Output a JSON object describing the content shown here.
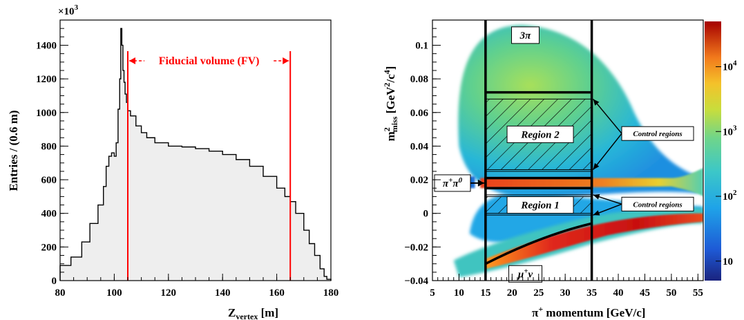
{
  "chart_data": [
    {
      "type": "histogram",
      "title": "",
      "xlabel_main": "Z",
      "xlabel_sub": "vertex",
      "xlabel_unit": " [m]",
      "ylabel": "Entries / (0.6 m)",
      "y_multiplier": "×10",
      "y_multiplier_exp": "3",
      "xlim": [
        80,
        180
      ],
      "ylim": [
        0,
        1550
      ],
      "x_ticks": [
        80,
        100,
        120,
        140,
        160,
        180
      ],
      "y_ticks": [
        0,
        200,
        400,
        600,
        800,
        1000,
        1200,
        1400
      ],
      "x": [
        80,
        84,
        88,
        91,
        94,
        96,
        97,
        98,
        99,
        100,
        100.7,
        101.4,
        102,
        102.4,
        102.8,
        103.2,
        103.6,
        104,
        104.5,
        105,
        106,
        108,
        110,
        112,
        115,
        120,
        125,
        130,
        135,
        140,
        145,
        150,
        155,
        160,
        163,
        165,
        167,
        170,
        172,
        174,
        176,
        177.5,
        178.5,
        180
      ],
      "y": [
        90,
        140,
        230,
        340,
        450,
        560,
        680,
        740,
        760,
        740,
        820,
        1020,
        1200,
        1500,
        1400,
        1250,
        1180,
        1110,
        1060,
        1010,
        980,
        920,
        880,
        850,
        820,
        800,
        795,
        785,
        770,
        750,
        720,
        680,
        620,
        550,
        500,
        470,
        400,
        300,
        220,
        150,
        70,
        25,
        8,
        0
      ],
      "fill_color": "#eeeeee",
      "annotation": {
        "text": "Fiducial volume (FV)",
        "x_range": [
          105,
          165
        ],
        "color": "#ff0000"
      }
    },
    {
      "type": "heatmap",
      "title": "",
      "xlabel_pre": "π",
      "xlabel_sup": "+",
      "xlabel_post": " momentum [GeV/c]",
      "ylabel_main": "m",
      "ylabel_sub": "miss",
      "ylabel_sup": "2",
      "ylabel_unit": " [GeV",
      "ylabel_unit_sup1": "2",
      "ylabel_unit_mid": "/c",
      "ylabel_unit_sup2": "4",
      "ylabel_unit_end": "]",
      "xlim": [
        5,
        56
      ],
      "ylim": [
        -0.04,
        0.115
      ],
      "x_ticks": [
        5,
        10,
        15,
        20,
        25,
        30,
        35,
        40,
        45,
        50,
        55
      ],
      "y_ticks": [
        -0.04,
        -0.02,
        0,
        0.02,
        0.04,
        0.06,
        0.08,
        0.1
      ],
      "y_tick_labels": [
        "−0.04",
        "−0.02",
        "0",
        "0.02",
        "0.04",
        "0.06",
        "0.08",
        "0.1"
      ],
      "z_scale": "log",
      "colorbar_ticks": [
        {
          "value": 10,
          "base": "10",
          "exp": ""
        },
        {
          "value": 100,
          "base": "10",
          "exp": "2"
        },
        {
          "value": 1000,
          "base": "10",
          "exp": "3"
        },
        {
          "value": 10000,
          "base": "10",
          "exp": "4"
        }
      ],
      "zlim": [
        5,
        50000
      ],
      "signal_box": {
        "x_range": [
          15,
          35
        ],
        "lines": "vertical at 15 and 35 GeV/c"
      },
      "regions": [
        {
          "label": "3π",
          "y_range": [
            0.072,
            0.115
          ]
        },
        {
          "label": "Region 2",
          "y_range": [
            0.026,
            0.068
          ]
        },
        {
          "label": "π⁺π⁰",
          "y_range": [
            0.015,
            0.021
          ]
        },
        {
          "label": "Region 1",
          "y_range": [
            0.0,
            0.01
          ]
        },
        {
          "label": "μ⁺ν",
          "y_range": [
            -0.04,
            -0.006
          ]
        }
      ],
      "control_label": "Control regions",
      "pipi0_label_base": "π",
      "pipi0_label_sup1": "+",
      "pipi0_label_mid": "π",
      "pipi0_label_sup2": "0",
      "munu_label_base": "μ",
      "munu_label_sup": "+",
      "munu_label_end": "ν",
      "threepi_label": "3π",
      "region1_label": "Region 1",
      "region2_label": "Region 2"
    }
  ]
}
